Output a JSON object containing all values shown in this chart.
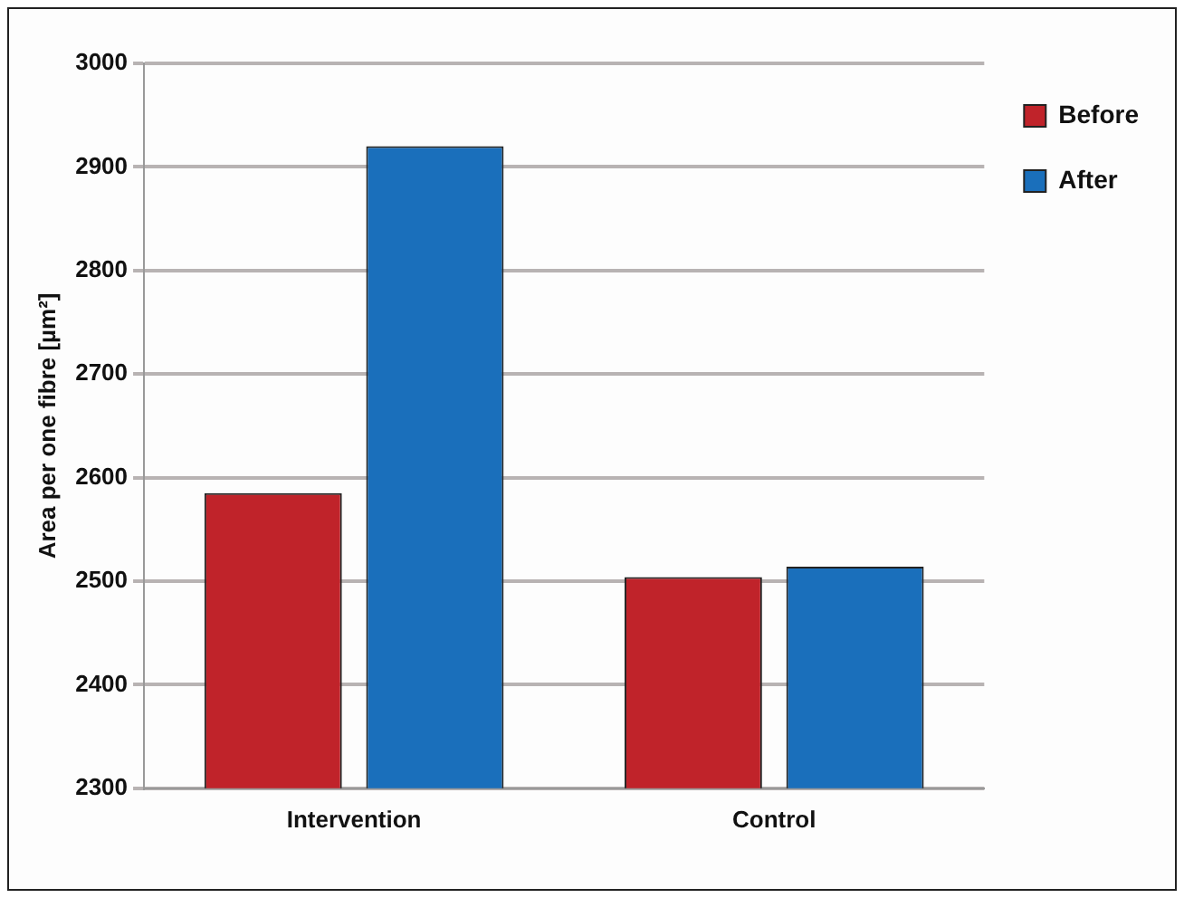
{
  "chart_data": {
    "type": "bar",
    "ylabel": "Area per one fibre [µm²]",
    "categories": [
      "Intervention",
      "Control"
    ],
    "series": [
      {
        "name": "Before",
        "color": "#c0232a",
        "values": [
          2585,
          2504
        ]
      },
      {
        "name": "After",
        "color": "#1a6fbb",
        "values": [
          2920,
          2514
        ]
      }
    ],
    "ylim": [
      2300,
      3000
    ],
    "yticks": [
      2300,
      2400,
      2500,
      2600,
      2700,
      2800,
      2900,
      3000
    ],
    "grid": "y",
    "legend": "top right"
  }
}
